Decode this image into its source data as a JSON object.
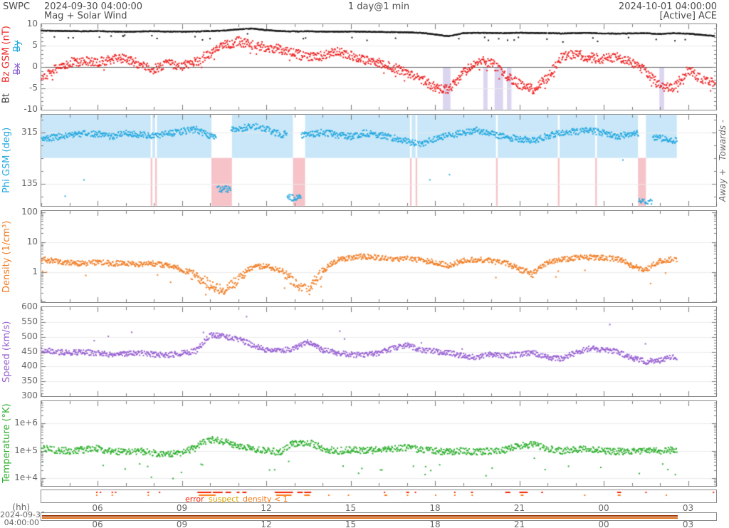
{
  "header": {
    "agency": "SWPC",
    "start_time": "2024-09-30 04:00:00",
    "plot_title": "Mag + Solar Wind",
    "resolution": "1 day@1 min",
    "end_time": "2024-10-01 04:00:00",
    "status": "[Active] ACE"
  },
  "footer": {
    "hh_label": "(hh)",
    "left_date": "2024-09-30",
    "left_time": "04:00:00",
    "hour_ticks": [
      6,
      9,
      12,
      15,
      18,
      21,
      24,
      27
    ],
    "hour_labels": [
      "06",
      "09",
      "12",
      "15",
      "18",
      "21",
      "00",
      "03"
    ],
    "flag_legend": [
      {
        "label": "error",
        "color": "#f22000",
        "x": 260
      },
      {
        "label": "suspect",
        "color": "#dda400",
        "x": 293
      },
      {
        "label": "density < 1",
        "color": "#f7760f",
        "x": 341
      }
    ],
    "loaded_range_hours": [
      4,
      26.6
    ]
  },
  "chart_data": {
    "type": "scatter",
    "x_axis": {
      "unit": "hh",
      "start_hour": 4,
      "end_hour": 28,
      "major_step": 3,
      "minor_step": 1
    },
    "panels": [
      {
        "id": "mag",
        "ylabel_primary": "Bt",
        "ylabel_secondary": "Bz GSM (nT)",
        "disabled_traces": {
          "bx": "Bx",
          "by": "By"
        },
        "scale": "linear",
        "ylim": [
          -10,
          10
        ],
        "yticks": [
          {
            "v": 10,
            "label": "10"
          },
          {
            "v": 5,
            "label": "5"
          },
          {
            "v": 0,
            "label": "0"
          },
          {
            "v": -5,
            "label": "-5"
          },
          {
            "v": -10,
            "label": "-10"
          }
        ],
        "grid": [
          5,
          -5
        ],
        "zero_line": 0,
        "minor_step": 1,
        "bands": {
          "color": "#dcd5f0",
          "from_value": 0,
          "segments": [
            [
              18.28,
              18.55
            ],
            [
              19.72,
              19.87
            ],
            [
              20.12,
              20.42
            ],
            [
              20.56,
              20.72
            ],
            [
              25.98,
              26.15
            ]
          ]
        },
        "series": [
          {
            "name": "Bt",
            "color": "#1a1a1a",
            "noise": 0.07,
            "seed": 11,
            "end": 27.97,
            "dropout": 0.05,
            "outlier_p": 0.02,
            "outlier_amp": -1.4,
            "t0": 4,
            "dt": 0.5,
            "anchors": [
              8.5,
              8.45,
              8.4,
              8.35,
              8.4,
              8.3,
              8.25,
              8.3,
              8.35,
              8.3,
              8.25,
              8.3,
              8.4,
              8.5,
              8.8,
              9.0,
              8.6,
              8.4,
              8.3,
              8.35,
              8.3,
              8.25,
              8.3,
              8.25,
              8.2,
              8.15,
              8.1,
              8.0,
              7.6,
              7.2,
              7.9,
              8.0,
              7.95,
              7.9,
              8.0,
              7.95,
              7.9,
              7.85,
              7.9,
              7.95,
              7.85,
              7.8,
              7.85,
              7.9,
              7.7,
              7.9,
              7.8,
              7.5,
              7.2
            ]
          },
          {
            "name": "Bz",
            "color": "#ee2222",
            "noise": 1.1,
            "seed": 22,
            "end": 27.97,
            "dropout": 0.05,
            "outlier_p": 0.01,
            "outlier_amp": -2.0,
            "t0": 4,
            "dt": 0.5,
            "anchors": [
              -2.5,
              -0.5,
              1.0,
              1.5,
              1.0,
              1.8,
              2.2,
              0.5,
              -0.5,
              0.8,
              0.3,
              1.2,
              3.2,
              5.0,
              6.0,
              5.2,
              4.6,
              4.2,
              3.2,
              2.2,
              2.6,
              3.6,
              2.6,
              1.6,
              1.0,
              0.0,
              -1.5,
              -2.8,
              -4.8,
              -5.3,
              -1.5,
              1.5,
              1.0,
              -2.0,
              -4.0,
              -5.2,
              -2.5,
              2.2,
              3.0,
              2.2,
              1.8,
              2.4,
              1.2,
              -1.0,
              -4.5,
              -5.0,
              -0.5,
              -3.0,
              -4.0
            ]
          }
        ]
      },
      {
        "id": "phi",
        "ylabel": "Phi GSM (deg)",
        "right_label": "Away +   Towards -",
        "scale": "linear",
        "ylim": [
          56.6,
          376.6
        ],
        "yticks": [
          {
            "v": 315,
            "label": "315"
          },
          {
            "v": 135,
            "label": "135"
          }
        ],
        "grid": [
          315,
          135
        ],
        "minor_step": 45,
        "sector_boundary_deg": 225,
        "away_band_color": "#c9e7f8",
        "toward_band_color": "#f6c3c8",
        "toward_segments": [
          [
            7.89,
            7.95
          ],
          [
            8.05,
            8.11
          ],
          [
            10.05,
            10.78
          ],
          [
            12.95,
            13.38
          ],
          [
            17.11,
            17.17
          ],
          [
            17.31,
            17.37
          ],
          [
            20.17,
            20.23
          ],
          [
            22.37,
            22.43
          ],
          [
            23.7,
            23.76
          ],
          [
            25.22,
            25.5
          ]
        ],
        "band_range": [
          4,
          26.6
        ],
        "series": [
          {
            "name": "Phi",
            "color": "#25a9e0",
            "noise": 11,
            "seed": 33,
            "end": 26.6,
            "dropout": 0.06,
            "outlier_p": 0.006,
            "outlier_amp": -150,
            "step_jump": 90,
            "t0": 4,
            "dt": 0.5,
            "anchors": [
              290,
              298,
              305,
              310,
              308,
              300,
              312,
              306,
              302,
              310,
              318,
              325,
              300,
              115,
              325,
              338,
              325,
              308,
              85,
              305,
              315,
              306,
              300,
              312,
              306,
              296,
              282,
              272,
              292,
              306,
              312,
              322,
              310,
              298,
              292,
              286,
              302,
              312,
              318,
              322,
              312,
              300,
              312,
              70,
              295,
              285,
              290,
              290,
              290
            ]
          }
        ]
      },
      {
        "id": "density",
        "ylabel": "Density (1/cm³)",
        "scale": "log",
        "ylim": [
          0.097,
          111
        ],
        "yticks": [
          {
            "v": 100,
            "label": "100"
          },
          {
            "v": 10,
            "label": "10"
          },
          {
            "v": 1,
            "label": "1"
          }
        ],
        "grid": [
          100,
          10,
          1
        ],
        "series": [
          {
            "name": "Density",
            "color": "#f07e26",
            "noise": 0.09,
            "seed": 44,
            "end": 26.6,
            "dropout": 0.1,
            "outlier_p": 0.015,
            "outlier_amp": -0.45,
            "low_boost": 2,
            "t0": 4,
            "dt": 0.5,
            "anchors": [
              2.6,
              2.3,
              2.0,
              1.9,
              2.1,
              1.9,
              2.0,
              1.8,
              1.9,
              1.6,
              1.2,
              0.7,
              0.35,
              0.22,
              0.5,
              1.4,
              1.6,
              1.1,
              0.4,
              0.22,
              0.9,
              2.4,
              3.0,
              3.3,
              3.0,
              2.7,
              2.9,
              2.4,
              2.1,
              1.6,
              2.4,
              2.6,
              2.3,
              2.0,
              1.2,
              0.9,
              2.0,
              2.6,
              2.9,
              3.1,
              2.9,
              2.7,
              1.6,
              1.1,
              2.3,
              2.7,
              2.7,
              2.7,
              2.7
            ]
          }
        ]
      },
      {
        "id": "speed",
        "ylabel": "Speed (km/s)",
        "scale": "linear",
        "ylim": [
          300,
          600
        ],
        "yticks": [
          {
            "v": 600,
            "label": "600"
          },
          {
            "v": 550,
            "label": "550"
          },
          {
            "v": 500,
            "label": "500"
          },
          {
            "v": 450,
            "label": "450"
          },
          {
            "v": 400,
            "label": "400"
          },
          {
            "v": 350,
            "label": "350"
          },
          {
            "v": 300,
            "label": "300"
          }
        ],
        "grid": [
          550,
          500,
          450,
          400,
          350
        ],
        "minor_step": 10,
        "series": [
          {
            "name": "Speed",
            "color": "#9760d2",
            "noise": 9,
            "seed": 55,
            "end": 26.6,
            "dropout": 0.1,
            "outlier_p": 0.012,
            "outlier_amp": 55,
            "t0": 4,
            "dt": 0.5,
            "anchors": [
              455,
              450,
              446,
              449,
              444,
              441,
              443,
              446,
              441,
              438,
              444,
              452,
              506,
              501,
              492,
              472,
              456,
              452,
              462,
              482,
              456,
              446,
              441,
              437,
              446,
              461,
              471,
              456,
              451,
              446,
              436,
              431,
              441,
              437,
              441,
              446,
              431,
              426,
              446,
              461,
              456,
              451,
              427,
              417,
              421,
              432,
              432,
              432,
              432
            ]
          }
        ]
      },
      {
        "id": "temperature",
        "ylabel": "Temperature (°K)",
        "scale": "log",
        "ylim": [
          5250,
          6600000
        ],
        "yticks": [
          {
            "v": 1000000,
            "label": "1e+6"
          },
          {
            "v": 100000,
            "label": "1e+5"
          },
          {
            "v": 10000,
            "label": "1e+4"
          }
        ],
        "grid": [
          1000000,
          100000,
          10000
        ],
        "series": [
          {
            "name": "Temperature",
            "color": "#2eaf2e",
            "noise": 0.12,
            "seed": 66,
            "end": 26.6,
            "dropout": 0.12,
            "outlier_p": 0.02,
            "outlier_amp": -0.7,
            "t0": 4,
            "dt": 0.5,
            "anchors": [
              120000,
              110000,
              100000,
              110000,
              120000,
              100000,
              90000,
              100000,
              85000,
              75000,
              85000,
              130000,
              260000,
              220000,
              150000,
              120000,
              100000,
              90000,
              190000,
              210000,
              120000,
              100000,
              110000,
              100000,
              110000,
              120000,
              130000,
              110000,
              100000,
              90000,
              100000,
              90000,
              100000,
              110000,
              150000,
              170000,
              120000,
              100000,
              110000,
              120000,
              100000,
              95000,
              100000,
              95000,
              100000,
              110000,
              110000,
              110000,
              110000
            ]
          }
        ]
      }
    ],
    "flags": {
      "rows": [
        {
          "color": "#f22000",
          "segments": [
            [
              5.95,
              6.0
            ],
            [
              6.08,
              6.12
            ],
            [
              6.5,
              6.55
            ],
            [
              6.62,
              6.66
            ],
            [
              7.78,
              7.82
            ],
            [
              8.18,
              8.22
            ],
            [
              9.55,
              10.05
            ],
            [
              10.1,
              10.45
            ],
            [
              10.55,
              10.75
            ],
            [
              10.95,
              11.05
            ],
            [
              11.15,
              11.3
            ],
            [
              12.3,
              12.95
            ],
            [
              13.1,
              13.3
            ],
            [
              13.35,
              13.6
            ],
            [
              16.18,
              16.22
            ],
            [
              16.98,
              17.08
            ],
            [
              17.28,
              17.32
            ],
            [
              18.68,
              18.72
            ],
            [
              19.28,
              19.35
            ],
            [
              20.5,
              20.68
            ],
            [
              21.0,
              21.3
            ],
            [
              21.78,
              21.84
            ],
            [
              24.48,
              24.62
            ],
            [
              25.48,
              25.52
            ],
            [
              27.88,
              27.92
            ]
          ]
        },
        {
          "color": "#ff7711",
          "segments": [
            [
              5.95,
              5.98
            ],
            [
              6.5,
              6.53
            ],
            [
              7.78,
              7.81
            ],
            [
              9.6,
              10.2
            ],
            [
              12.35,
              12.9
            ],
            [
              13.35,
              13.55
            ],
            [
              14.2,
              14.24
            ],
            [
              14.9,
              14.94
            ],
            [
              16.2,
              16.3
            ],
            [
              17.0,
              17.04
            ],
            [
              18.0,
              18.04
            ],
            [
              18.68,
              18.72
            ],
            [
              19.3,
              19.34
            ],
            [
              21.05,
              21.15
            ],
            [
              23.3,
              23.34
            ],
            [
              24.5,
              24.6
            ],
            [
              26.2,
              26.24
            ]
          ]
        }
      ]
    }
  }
}
